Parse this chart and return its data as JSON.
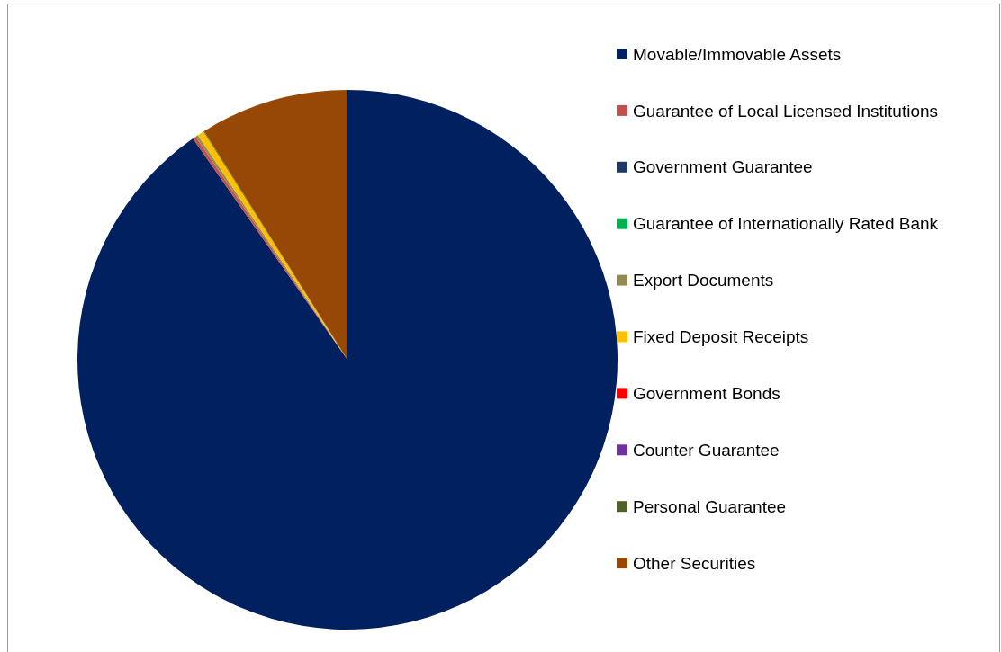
{
  "chart_data": {
    "type": "pie",
    "categories": [
      "Movable/Immovable Assets",
      "Guarantee of Local Licensed Institutions",
      "Government Guarantee",
      "Guarantee of Internationally Rated Bank",
      "Export Documents",
      "Fixed Deposit Receipts",
      "Government Bonds",
      "Counter Guarantee",
      "Personal Guarantee",
      "Other Securities"
    ],
    "values": [
      90.3,
      0.2,
      0,
      0,
      0.15,
      0.4,
      0,
      0,
      0.05,
      8.9
    ],
    "colors": [
      "#002060",
      "#c0504d",
      "#1f3864",
      "#00b050",
      "#948a54",
      "#ffc000",
      "#ff0000",
      "#7030a0",
      "#4f6228",
      "#974706"
    ],
    "legend": "right"
  }
}
